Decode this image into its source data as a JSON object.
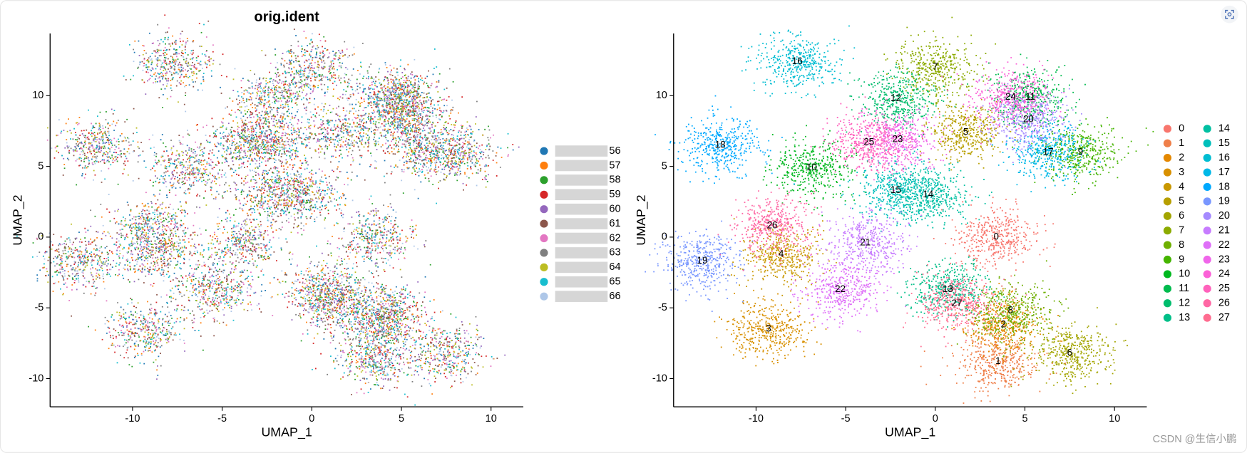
{
  "chart_data": [
    {
      "type": "scatter",
      "title": "orig.ident",
      "x_label": "UMAP_1",
      "y_label": "UMAP_2",
      "xlim": [
        -14.6,
        11.8
      ],
      "ylim": [
        -12.0,
        14.4
      ],
      "xticks": [
        -10,
        -5,
        0,
        5,
        10
      ],
      "yticks": [
        -10,
        -5,
        0,
        5,
        10
      ],
      "legend": "right",
      "series": [
        {
          "name": "56",
          "color": "#1f77b4"
        },
        {
          "name": "57",
          "color": "#ff7f0e"
        },
        {
          "name": "58",
          "color": "#2ca02c"
        },
        {
          "name": "59",
          "color": "#d62728"
        },
        {
          "name": "60",
          "color": "#9467bd"
        },
        {
          "name": "61",
          "color": "#8c564b"
        },
        {
          "name": "62",
          "color": "#e377c2"
        },
        {
          "name": "63",
          "color": "#7f7f7f"
        },
        {
          "name": "64",
          "color": "#bcbd22"
        },
        {
          "name": "65",
          "color": "#17becf"
        },
        {
          "name": "66",
          "color": "#aec7e8"
        }
      ]
    },
    {
      "type": "scatter",
      "x_label": "UMAP_1",
      "y_label": "UMAP_2",
      "xlim": [
        -14.6,
        11.8
      ],
      "ylim": [
        -12.0,
        14.4
      ],
      "xticks": [
        -10,
        -5,
        0,
        5,
        10
      ],
      "yticks": [
        -10,
        -5,
        0,
        5,
        10
      ],
      "legend": "right",
      "series": [
        {
          "name": "0",
          "color": "#F8766D",
          "x": [
            3.4
          ],
          "values": [
            0.0
          ]
        },
        {
          "name": "1",
          "color": "#EF7F49",
          "x": [
            3.5
          ],
          "values": [
            -8.8
          ]
        },
        {
          "name": "2",
          "color": "#E48800",
          "x": [
            3.8
          ],
          "values": [
            -6.2
          ]
        },
        {
          "name": "3",
          "color": "#D89000",
          "x": [
            -9.3
          ],
          "values": [
            -6.5
          ]
        },
        {
          "name": "4",
          "color": "#C99800",
          "x": [
            -8.6
          ],
          "values": [
            -1.2
          ]
        },
        {
          "name": "5",
          "color": "#B79F00",
          "x": [
            1.7
          ],
          "values": [
            7.4
          ]
        },
        {
          "name": "6",
          "color": "#A3A500",
          "x": [
            7.5
          ],
          "values": [
            -8.2
          ]
        },
        {
          "name": "7",
          "color": "#8CAB00",
          "x": [
            0.0
          ],
          "values": [
            12.0
          ]
        },
        {
          "name": "8",
          "color": "#6FB000",
          "x": [
            4.2
          ],
          "values": [
            -5.2
          ]
        },
        {
          "name": "9",
          "color": "#45B500",
          "x": [
            8.1
          ],
          "values": [
            6.0
          ]
        },
        {
          "name": "10",
          "color": "#00B81F",
          "x": [
            -6.9
          ],
          "values": [
            4.9
          ]
        },
        {
          "name": "11",
          "color": "#00BB4E",
          "x": [
            5.3
          ],
          "values": [
            9.9
          ]
        },
        {
          "name": "12",
          "color": "#00BD6D",
          "x": [
            -2.2
          ],
          "values": [
            9.8
          ]
        },
        {
          "name": "13",
          "color": "#00BF88",
          "x": [
            0.7
          ],
          "values": [
            -3.7
          ]
        },
        {
          "name": "14",
          "color": "#00C0A2",
          "x": [
            -0.4
          ],
          "values": [
            3.0
          ]
        },
        {
          "name": "15",
          "color": "#00BFBB",
          "x": [
            -2.2
          ],
          "values": [
            3.3
          ]
        },
        {
          "name": "16",
          "color": "#00BDD2",
          "x": [
            -7.7
          ],
          "values": [
            12.4
          ]
        },
        {
          "name": "17",
          "color": "#00B8E7",
          "x": [
            6.3
          ],
          "values": [
            6.0
          ]
        },
        {
          "name": "18",
          "color": "#00A9FF",
          "x": [
            -12.0
          ],
          "values": [
            6.5
          ]
        },
        {
          "name": "19",
          "color": "#7997FF",
          "x": [
            -13.0
          ],
          "values": [
            -1.7
          ]
        },
        {
          "name": "20",
          "color": "#A58AFF",
          "x": [
            5.2
          ],
          "values": [
            8.3
          ]
        },
        {
          "name": "21",
          "color": "#C77CFF",
          "x": [
            -3.9
          ],
          "values": [
            -0.4
          ]
        },
        {
          "name": "22",
          "color": "#DF70F8",
          "x": [
            -5.3
          ],
          "values": [
            -3.7
          ]
        },
        {
          "name": "23",
          "color": "#F066EA",
          "x": [
            -2.1
          ],
          "values": [
            6.9
          ]
        },
        {
          "name": "24",
          "color": "#FB61D7",
          "x": [
            4.2
          ],
          "values": [
            9.9
          ]
        },
        {
          "name": "25",
          "color": "#FF62BC",
          "x": [
            -3.7
          ],
          "values": [
            6.7
          ]
        },
        {
          "name": "26",
          "color": "#FF67A4",
          "x": [
            -9.1
          ],
          "values": [
            0.8
          ]
        },
        {
          "name": "27",
          "color": "#FF6C90",
          "x": [
            1.2
          ],
          "values": [
            -4.7
          ]
        }
      ]
    }
  ],
  "watermark": "CSDN @生信小鹏"
}
